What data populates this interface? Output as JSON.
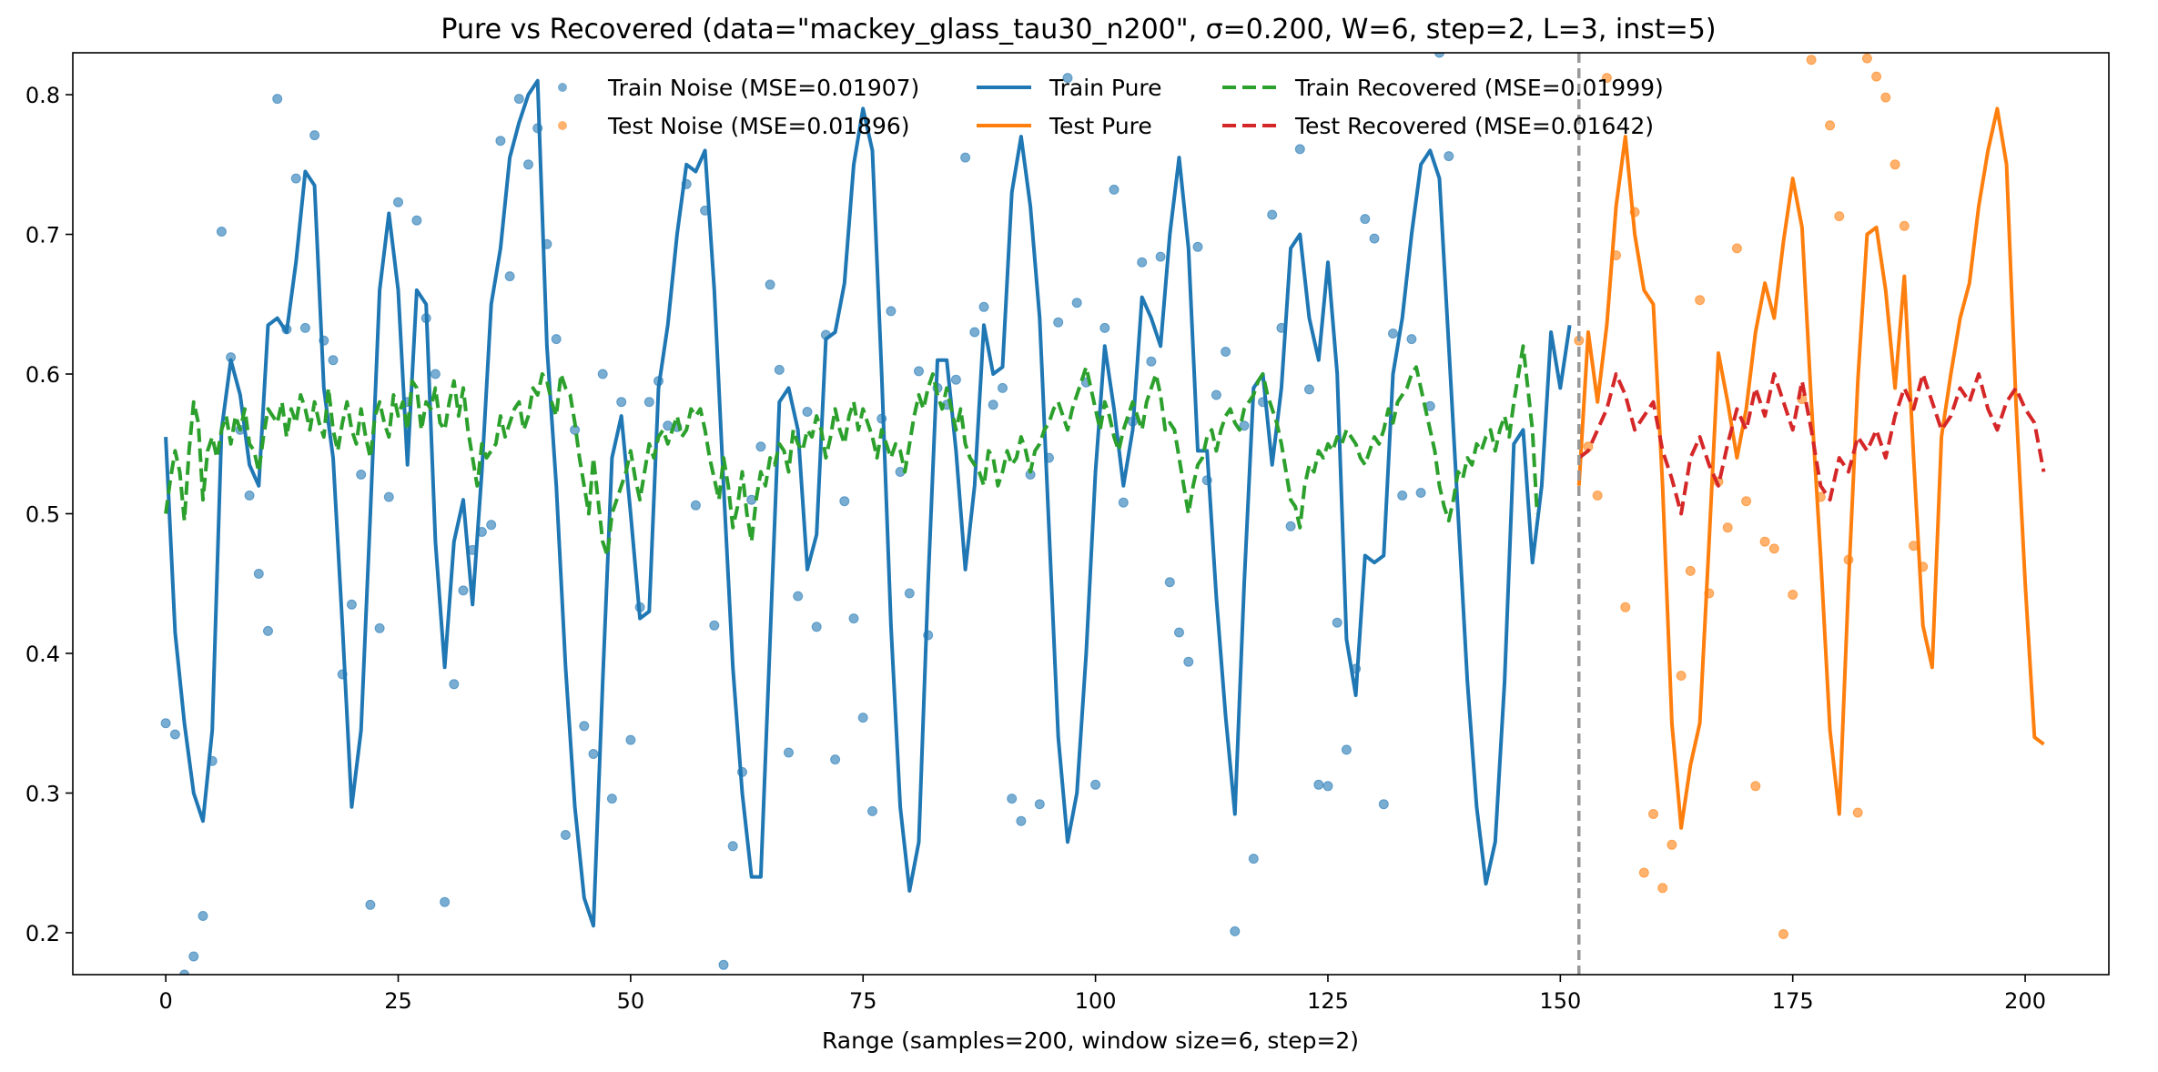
{
  "chart_data": {
    "type": "line",
    "title": "Pure vs Recovered (data=\"mackey_glass_tau30_n200\", σ=0.200, W=6, step=2, L=3, inst=5)",
    "xlabel": "Range (samples=200, window size=6, step=2)",
    "ylabel": "",
    "xlim": [
      -10,
      209
    ],
    "ylim": [
      0.17,
      0.83
    ],
    "xticks": [
      0,
      25,
      50,
      75,
      100,
      125,
      150,
      175,
      200
    ],
    "xtick_labels": [
      "0",
      "25",
      "50",
      "75",
      "100",
      "125",
      "150",
      "175",
      "200"
    ],
    "yticks": [
      0.2,
      0.3,
      0.4,
      0.5,
      0.6,
      0.7,
      0.8
    ],
    "ytick_labels": [
      "0.2",
      "0.3",
      "0.4",
      "0.5",
      "0.6",
      "0.7",
      "0.8"
    ],
    "grid": false,
    "legend_position": "top-center",
    "split_x": 152,
    "split_color": "#999999",
    "legend": [
      {
        "key": "train_noise",
        "label": "Train Noise (MSE=0.01907)",
        "kind": "dot",
        "color": "#1f77b4"
      },
      {
        "key": "test_noise",
        "label": "Test  Noise (MSE=0.01896)",
        "kind": "dot",
        "color": "#ff7f0e"
      },
      {
        "key": "train_pure",
        "label": "Train Pure",
        "kind": "line",
        "color": "#1f77b4"
      },
      {
        "key": "test_pure",
        "label": "Test Pure",
        "kind": "line",
        "color": "#ff7f0e"
      },
      {
        "key": "train_recovered",
        "label": "Train Recovered (MSE=0.01999)",
        "kind": "dash",
        "color": "#2ca02c"
      },
      {
        "key": "test_recovered",
        "label": "Test  Recovered (MSE=0.01642)",
        "kind": "dash",
        "color": "#d62728"
      }
    ],
    "series": [
      {
        "name": "Train Pure",
        "key": "train_pure",
        "style": "line",
        "color": "#1f77b4",
        "x_start": 0,
        "values": [
          0.555,
          0.415,
          0.35,
          0.3,
          0.28,
          0.345,
          0.56,
          0.61,
          0.585,
          0.535,
          0.52,
          0.635,
          0.64,
          0.63,
          0.68,
          0.745,
          0.735,
          0.59,
          0.54,
          0.42,
          0.29,
          0.345,
          0.5,
          0.66,
          0.715,
          0.66,
          0.535,
          0.66,
          0.65,
          0.48,
          0.39,
          0.48,
          0.51,
          0.435,
          0.53,
          0.65,
          0.69,
          0.755,
          0.78,
          0.8,
          0.81,
          0.62,
          0.52,
          0.39,
          0.29,
          0.225,
          0.205,
          0.38,
          0.54,
          0.57,
          0.5,
          0.425,
          0.43,
          0.59,
          0.635,
          0.7,
          0.75,
          0.745,
          0.76,
          0.66,
          0.52,
          0.39,
          0.3,
          0.24,
          0.24,
          0.41,
          0.58,
          0.59,
          0.56,
          0.46,
          0.485,
          0.625,
          0.63,
          0.665,
          0.75,
          0.79,
          0.76,
          0.6,
          0.42,
          0.29,
          0.23,
          0.265,
          0.45,
          0.61,
          0.61,
          0.545,
          0.46,
          0.52,
          0.635,
          0.6,
          0.605,
          0.73,
          0.77,
          0.72,
          0.64,
          0.49,
          0.34,
          0.265,
          0.3,
          0.4,
          0.53,
          0.62,
          0.575,
          0.52,
          0.56,
          0.655,
          0.64,
          0.62,
          0.7,
          0.755,
          0.69,
          0.545,
          0.545,
          0.44,
          0.355,
          0.285,
          0.45,
          0.59,
          0.6,
          0.535,
          0.59,
          0.69,
          0.7,
          0.64,
          0.61,
          0.68,
          0.6,
          0.41,
          0.37,
          0.47,
          0.465,
          0.47,
          0.6,
          0.64,
          0.7,
          0.75,
          0.76,
          0.74,
          0.62,
          0.5,
          0.38,
          0.29,
          0.235,
          0.265,
          0.38,
          0.55,
          0.56,
          0.465,
          0.52,
          0.63,
          0.59,
          0.635
        ]
      },
      {
        "name": "Test Pure",
        "key": "test_pure",
        "style": "line",
        "color": "#ff7f0e",
        "x_start": 152,
        "values": [
          0.52,
          0.63,
          0.58,
          0.635,
          0.72,
          0.77,
          0.7,
          0.66,
          0.65,
          0.52,
          0.35,
          0.275,
          0.32,
          0.35,
          0.48,
          0.615,
          0.58,
          0.54,
          0.575,
          0.63,
          0.665,
          0.64,
          0.695,
          0.74,
          0.705,
          0.58,
          0.47,
          0.345,
          0.285,
          0.45,
          0.595,
          0.7,
          0.705,
          0.66,
          0.59,
          0.67,
          0.54,
          0.42,
          0.39,
          0.555,
          0.6,
          0.64,
          0.665,
          0.72,
          0.76,
          0.79,
          0.75,
          0.58,
          0.45,
          0.34,
          0.335
        ]
      },
      {
        "name": "Train Recovered",
        "key": "train_recovered",
        "style": "dash",
        "color": "#2ca02c",
        "x_start": 0,
        "x_step": 0.5,
        "values": [
          0.5,
          0.525,
          0.545,
          0.53,
          0.495,
          0.545,
          0.58,
          0.565,
          0.51,
          0.545,
          0.555,
          0.54,
          0.56,
          0.57,
          0.55,
          0.57,
          0.56,
          0.575,
          0.55,
          0.545,
          0.53,
          0.555,
          0.575,
          0.57,
          0.565,
          0.58,
          0.555,
          0.575,
          0.565,
          0.585,
          0.575,
          0.56,
          0.58,
          0.565,
          0.555,
          0.59,
          0.56,
          0.545,
          0.565,
          0.58,
          0.56,
          0.55,
          0.575,
          0.555,
          0.54,
          0.57,
          0.58,
          0.565,
          0.555,
          0.585,
          0.57,
          0.58,
          0.56,
          0.595,
          0.59,
          0.56,
          0.58,
          0.575,
          0.59,
          0.565,
          0.56,
          0.58,
          0.595,
          0.57,
          0.59,
          0.56,
          0.54,
          0.52,
          0.55,
          0.54,
          0.545,
          0.55,
          0.57,
          0.555,
          0.565,
          0.575,
          0.58,
          0.56,
          0.57,
          0.59,
          0.585,
          0.6,
          0.595,
          0.58,
          0.57,
          0.6,
          0.59,
          0.585,
          0.565,
          0.54,
          0.52,
          0.5,
          0.54,
          0.51,
          0.48,
          0.47,
          0.5,
          0.51,
          0.52,
          0.53,
          0.545,
          0.525,
          0.51,
          0.53,
          0.55,
          0.54,
          0.555,
          0.56,
          0.55,
          0.56,
          0.57,
          0.555,
          0.56,
          0.575,
          0.57,
          0.575,
          0.56,
          0.54,
          0.525,
          0.51,
          0.54,
          0.52,
          0.49,
          0.505,
          0.53,
          0.5,
          0.48,
          0.51,
          0.53,
          0.52,
          0.54,
          0.535,
          0.55,
          0.545,
          0.53,
          0.56,
          0.55,
          0.545,
          0.56,
          0.555,
          0.57,
          0.56,
          0.54,
          0.555,
          0.575,
          0.56,
          0.55,
          0.57,
          0.58,
          0.56,
          0.575,
          0.565,
          0.555,
          0.54,
          0.56,
          0.55,
          0.54,
          0.55,
          0.545,
          0.53,
          0.55,
          0.57,
          0.585,
          0.575,
          0.59,
          0.6,
          0.585,
          0.575,
          0.59,
          0.575,
          0.56,
          0.575,
          0.55,
          0.54,
          0.535,
          0.53,
          0.52,
          0.545,
          0.54,
          0.52,
          0.53,
          0.545,
          0.535,
          0.54,
          0.555,
          0.545,
          0.53,
          0.545,
          0.55,
          0.56,
          0.565,
          0.575,
          0.58,
          0.57,
          0.56,
          0.575,
          0.585,
          0.595,
          0.605,
          0.59,
          0.575,
          0.56,
          0.58,
          0.57,
          0.555,
          0.545,
          0.56,
          0.57,
          0.58,
          0.57,
          0.56,
          0.58,
          0.59,
          0.6,
          0.585,
          0.56,
          0.565,
          0.56,
          0.54,
          0.52,
          0.5,
          0.52,
          0.535,
          0.54,
          0.555,
          0.56,
          0.545,
          0.56,
          0.57,
          0.575,
          0.565,
          0.56,
          0.575,
          0.58,
          0.585,
          0.595,
          0.6,
          0.585,
          0.575,
          0.565,
          0.55,
          0.53,
          0.51,
          0.505,
          0.49,
          0.52,
          0.535,
          0.53,
          0.545,
          0.54,
          0.55,
          0.545,
          0.555,
          0.55,
          0.56,
          0.555,
          0.55,
          0.54,
          0.535,
          0.545,
          0.555,
          0.55,
          0.56,
          0.575,
          0.565,
          0.58,
          0.585,
          0.59,
          0.6,
          0.605,
          0.59,
          0.575,
          0.56,
          0.545,
          0.52,
          0.505,
          0.495,
          0.51,
          0.53,
          0.525,
          0.54,
          0.535,
          0.55,
          0.545,
          0.555,
          0.56,
          0.545,
          0.56,
          0.57,
          0.555,
          0.58,
          0.6,
          0.62,
          0.59,
          0.56,
          0.5
        ]
      },
      {
        "name": "Test Recovered",
        "key": "test_recovered",
        "style": "dash",
        "color": "#d62728",
        "x_start": 152,
        "values": [
          0.54,
          0.545,
          0.56,
          0.575,
          0.6,
          0.585,
          0.56,
          0.57,
          0.58,
          0.545,
          0.525,
          0.5,
          0.54,
          0.555,
          0.535,
          0.52,
          0.55,
          0.575,
          0.56,
          0.59,
          0.57,
          0.6,
          0.58,
          0.56,
          0.595,
          0.56,
          0.52,
          0.51,
          0.54,
          0.53,
          0.555,
          0.545,
          0.56,
          0.54,
          0.57,
          0.59,
          0.575,
          0.6,
          0.58,
          0.56,
          0.57,
          0.59,
          0.58,
          0.6,
          0.575,
          0.56,
          0.58,
          0.59,
          0.575,
          0.565,
          0.53
        ]
      },
      {
        "name": "Train Noise",
        "key": "train_noise",
        "style": "dot",
        "color": "#1f77b4",
        "x_start": 0,
        "values": [
          0.35,
          0.342,
          0.17,
          0.183,
          0.212,
          0.323,
          0.702,
          0.612,
          0.56,
          0.513,
          0.457,
          0.416,
          0.797,
          0.632,
          0.74,
          0.633,
          0.771,
          0.624,
          0.61,
          0.385,
          0.435,
          0.528,
          0.22,
          0.418,
          0.512,
          0.723,
          0.58,
          0.71,
          0.64,
          0.6,
          0.222,
          0.378,
          0.445,
          0.474,
          0.487,
          0.492,
          0.767,
          0.67,
          0.797,
          0.75,
          0.776,
          0.693,
          0.625,
          0.27,
          0.56,
          0.348,
          0.328,
          0.6,
          0.296,
          0.58,
          0.338,
          0.433,
          0.58,
          0.595,
          0.563,
          0.562,
          0.736,
          0.506,
          0.717,
          0.42,
          0.177,
          0.262,
          0.315,
          0.51,
          0.548,
          0.664,
          0.603,
          0.329,
          0.441,
          0.573,
          0.419,
          0.628,
          0.324,
          0.509,
          0.425,
          0.354,
          0.287,
          0.568,
          0.645,
          0.53,
          0.443,
          0.602,
          0.413,
          0.59,
          0.578,
          0.596,
          0.755,
          0.63,
          0.648,
          0.578,
          0.59,
          0.296,
          0.28,
          0.528,
          0.292,
          0.54,
          0.637,
          0.812,
          0.651,
          0.594,
          0.306,
          0.633,
          0.732,
          0.508,
          0.566,
          0.68,
          0.609,
          0.684,
          0.451,
          0.415,
          0.394,
          0.691,
          0.524,
          0.585,
          0.616,
          0.201,
          0.563,
          0.253,
          0.58,
          0.714,
          0.633,
          0.491,
          0.761,
          0.589,
          0.306,
          0.305,
          0.422,
          0.331,
          0.389,
          0.711,
          0.697,
          0.292,
          0.629,
          0.513,
          0.625,
          0.515,
          0.577,
          0.83,
          0.756
        ]
      },
      {
        "name": "Test Noise",
        "key": "test_noise",
        "style": "dot",
        "color": "#ff7f0e",
        "x_start": 152,
        "values": [
          0.624,
          0.548,
          0.513,
          0.812,
          0.685,
          0.433,
          0.716,
          0.243,
          0.285,
          0.232,
          0.263,
          0.384,
          0.459,
          0.653,
          0.443,
          0.523,
          0.49,
          0.69,
          0.509,
          0.305,
          0.48,
          0.475,
          0.199,
          0.442,
          0.582,
          0.825,
          0.512,
          0.778,
          0.713,
          0.467,
          0.286,
          0.826,
          0.813,
          0.798,
          0.75,
          0.706,
          0.477,
          0.462
        ]
      }
    ]
  }
}
